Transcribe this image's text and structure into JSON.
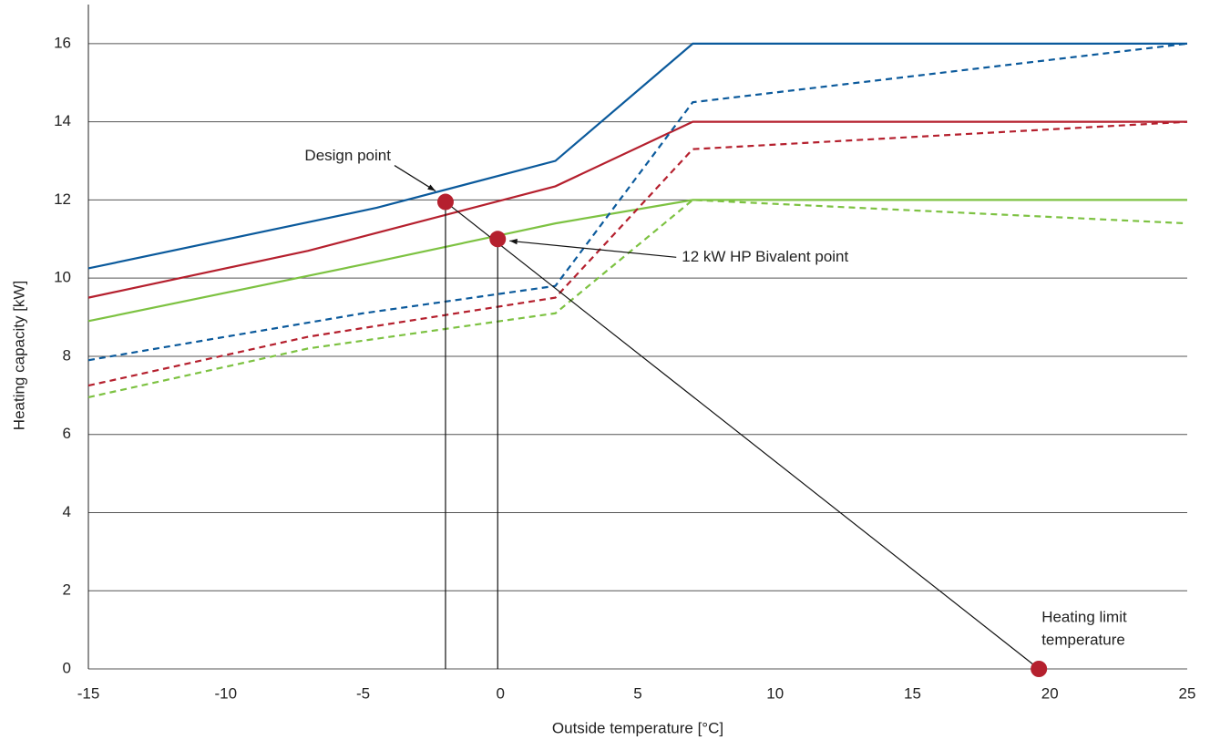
{
  "chart_data": {
    "type": "line",
    "x_label": "Outside temperature [°C]",
    "y_label": "Heating capacity [kW]",
    "xlim": [
      -15,
      25
    ],
    "xticks": [
      -15,
      -10,
      -5,
      0,
      5,
      10,
      15,
      20,
      25
    ],
    "ylim": [
      0,
      17
    ],
    "yticks": [
      0,
      2,
      4,
      6,
      8,
      10,
      12,
      14,
      16
    ],
    "grid": true,
    "series": [
      {
        "color": "#0b5a9c",
        "dashed": false,
        "x": [
          -15,
          -4.5,
          2,
          7,
          25
        ],
        "values": [
          10.25,
          11.8,
          13,
          16,
          16
        ]
      },
      {
        "color": "#b5202e",
        "dashed": false,
        "x": [
          -15,
          -7,
          2,
          7,
          25
        ],
        "values": [
          9.5,
          10.7,
          12.35,
          14,
          14
        ]
      },
      {
        "color": "#7dc242",
        "dashed": false,
        "x": [
          -15,
          -5,
          2,
          7,
          25
        ],
        "values": [
          8.9,
          10.35,
          11.4,
          12,
          12
        ]
      },
      {
        "color": "#0b5a9c",
        "dashed": true,
        "x": [
          -15,
          -5,
          2,
          7,
          25
        ],
        "values": [
          7.9,
          9.1,
          9.8,
          14.5,
          16
        ]
      },
      {
        "color": "#b5202e",
        "dashed": true,
        "x": [
          -15,
          -7,
          2,
          7,
          25
        ],
        "values": [
          7.25,
          8.5,
          9.5,
          13.3,
          14
        ]
      },
      {
        "color": "#7dc242",
        "dashed": true,
        "x": [
          -15,
          -7,
          2,
          7,
          25
        ],
        "values": [
          6.95,
          8.2,
          9.1,
          12,
          11.4
        ]
      }
    ],
    "point_color": "#b5202e",
    "points": [
      {
        "label": [
          "Design point"
        ],
        "x": -2,
        "y": 11.95
      },
      {
        "label": [
          "12 kW HP Bivalent point"
        ],
        "x": -0.1,
        "y": 11
      },
      {
        "label": [
          "Heating limit",
          "temperature"
        ],
        "x": 19.6,
        "y": 0
      }
    ]
  }
}
